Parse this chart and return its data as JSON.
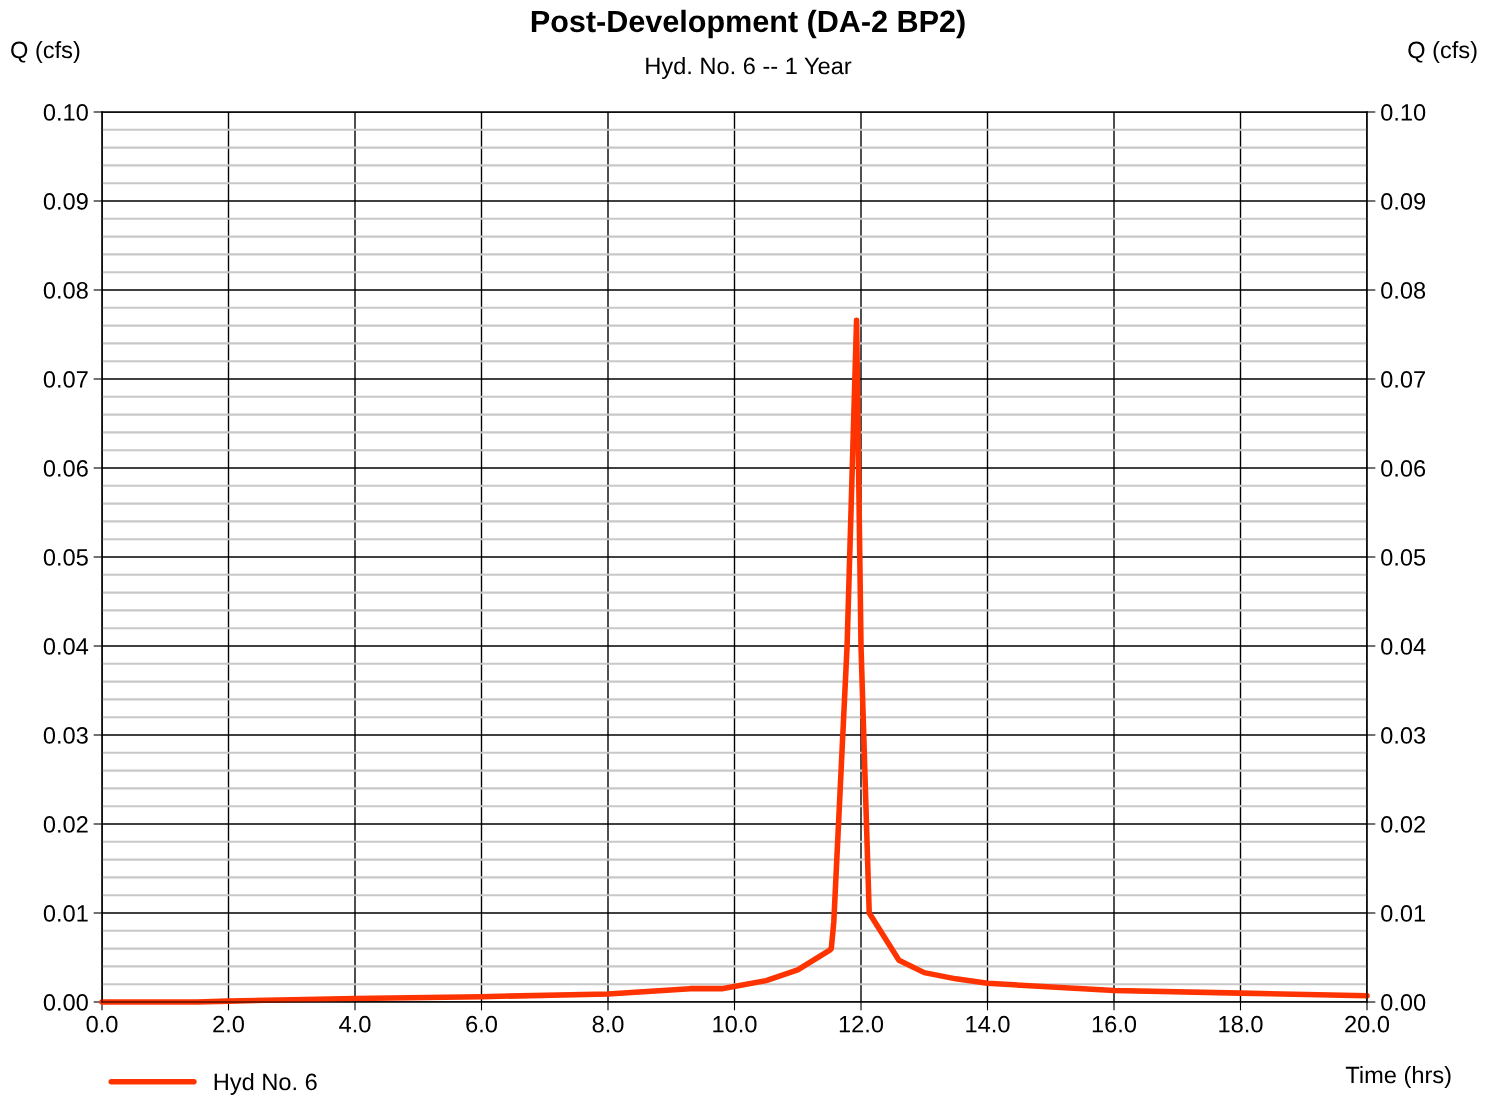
{
  "chart_data": {
    "type": "line",
    "title": "Post-Development (DA-2 BP2)",
    "subtitle": "Hyd. No. 6 -- 1 Year",
    "xlabel": "Time (hrs)",
    "ylabel": "Q (cfs)",
    "y2label": "Q (cfs)",
    "series": [
      {
        "name": "Hyd No. 6",
        "color": "#ff3300",
        "x": [
          0.0,
          1.5,
          2.0,
          4.0,
          6.0,
          8.0,
          9.3,
          9.8,
          10.5,
          11.0,
          11.5,
          11.53,
          11.57,
          11.78,
          11.93,
          12.0,
          12.13,
          12.6,
          13.0,
          13.5,
          14.0,
          16.0,
          18.0,
          20.0
        ],
        "values": [
          0.0,
          0.0,
          0.0001,
          0.0004,
          0.0006,
          0.0009,
          0.0015,
          0.0015,
          0.0024,
          0.0036,
          0.0058,
          0.006,
          0.009,
          0.04,
          0.0766,
          0.04,
          0.01,
          0.0047,
          0.0033,
          0.0026,
          0.0021,
          0.0013,
          0.001,
          0.0007
        ]
      }
    ],
    "xlim": [
      0,
      20
    ],
    "xticks": [
      {
        "value": 0,
        "label": "0.0"
      },
      {
        "value": 2,
        "label": "2.0"
      },
      {
        "value": 4,
        "label": "4.0"
      },
      {
        "value": 6,
        "label": "6.0"
      },
      {
        "value": 8,
        "label": "8.0"
      },
      {
        "value": 10,
        "label": "10.0"
      },
      {
        "value": 12,
        "label": "12.0"
      },
      {
        "value": 14,
        "label": "14.0"
      },
      {
        "value": 16,
        "label": "16.0"
      },
      {
        "value": 18,
        "label": "18.0"
      },
      {
        "value": 20,
        "label": "20.0"
      }
    ],
    "ylim": [
      0,
      0.1
    ],
    "yticks": [
      {
        "value": 0,
        "label": "0.00"
      },
      {
        "value": 0.01,
        "label": "0.01"
      },
      {
        "value": 0.02,
        "label": "0.02"
      },
      {
        "value": 0.03,
        "label": "0.03"
      },
      {
        "value": 0.04,
        "label": "0.04"
      },
      {
        "value": 0.05,
        "label": "0.05"
      },
      {
        "value": 0.06,
        "label": "0.06"
      },
      {
        "value": 0.07,
        "label": "0.07"
      },
      {
        "value": 0.08,
        "label": "0.08"
      },
      {
        "value": 0.09,
        "label": "0.09"
      },
      {
        "value": 0.1,
        "label": "0.10"
      }
    ],
    "y2lim": [
      0,
      0.1
    ],
    "y2ticks": [
      {
        "value": 0,
        "label": "0.00"
      },
      {
        "value": 0.01,
        "label": "0.01"
      },
      {
        "value": 0.02,
        "label": "0.02"
      },
      {
        "value": 0.03,
        "label": "0.03"
      },
      {
        "value": 0.04,
        "label": "0.04"
      },
      {
        "value": 0.05,
        "label": "0.05"
      },
      {
        "value": 0.06,
        "label": "0.06"
      },
      {
        "value": 0.07,
        "label": "0.07"
      },
      {
        "value": 0.08,
        "label": "0.08"
      },
      {
        "value": 0.09,
        "label": "0.09"
      },
      {
        "value": 0.1,
        "label": "0.10"
      }
    ],
    "grid": true,
    "legend": "bottom left",
    "marker": "none",
    "line_style": "solid"
  }
}
